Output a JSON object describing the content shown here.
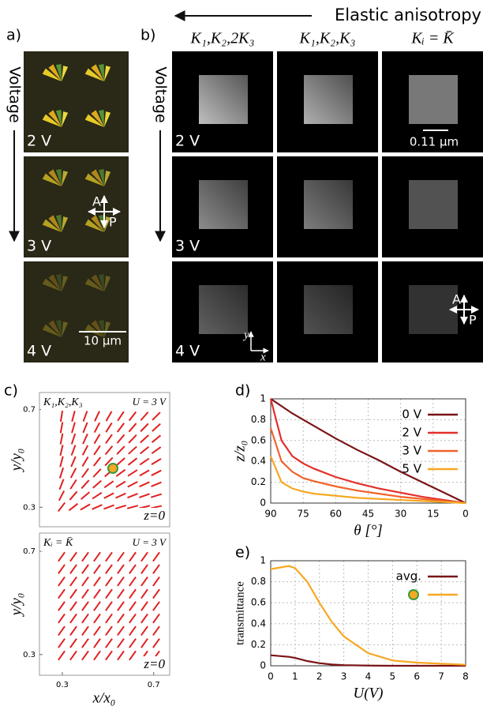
{
  "header": {
    "arrow_label": "Elastic anisotropy"
  },
  "panel_a": {
    "label": "a)",
    "axis_label": "Voltage",
    "rows": [
      "2 V",
      "3 V",
      "4 V"
    ],
    "polarizer": [
      "A",
      "P"
    ],
    "scale_bar": "10 μm"
  },
  "panel_b": {
    "label": "b)",
    "axis_label": "Voltage",
    "columns": [
      "K₁,K₂,2K₃",
      "K₁,K₂,K₃",
      "Kᵢ = K̄"
    ],
    "rows": [
      "2 V",
      "3 V",
      "4 V"
    ],
    "scale_bar": "0.11 μm",
    "axes": [
      "y",
      "x"
    ],
    "polarizer": [
      "A",
      "P"
    ]
  },
  "panel_c": {
    "label": "c)",
    "plots": [
      {
        "title": "K₁,K₂,K₃",
        "voltage": "U = 3 V",
        "plane": "z=0"
      },
      {
        "title": "Kᵢ = K̄",
        "voltage": "U = 3 V",
        "plane": "z=0"
      }
    ],
    "ylabel": "y/y₀",
    "xlabel": "x/x₀",
    "xlim": [
      0.2,
      0.77
    ],
    "ylim": [
      0.22,
      0.77
    ],
    "xticks": [
      0.3,
      0.7
    ],
    "yticks": [
      0.3,
      0.7
    ]
  },
  "chart_data": [
    {
      "type": "line",
      "label": "d)",
      "xlabel": "θ [°]",
      "ylabel": "z/z₀",
      "x": [
        90,
        85,
        80,
        75,
        70,
        60,
        50,
        40,
        30,
        20,
        10,
        0
      ],
      "xlim": [
        90,
        0
      ],
      "xticks": [
        90,
        75,
        60,
        45,
        30,
        15,
        0
      ],
      "ylim": [
        0,
        1
      ],
      "yticks": [
        0,
        0.2,
        0.4,
        0.6,
        0.8,
        1
      ],
      "grid": true,
      "series": [
        {
          "name": "0 V",
          "color": "#7a1416",
          "values": [
            1,
            0.93,
            0.86,
            0.8,
            0.74,
            0.62,
            0.51,
            0.41,
            0.3,
            0.2,
            0.1,
            0
          ]
        },
        {
          "name": "2 V",
          "color": "#e2302a",
          "values": [
            1,
            0.6,
            0.45,
            0.38,
            0.33,
            0.25,
            0.19,
            0.14,
            0.1,
            0.06,
            0.03,
            0
          ]
        },
        {
          "name": "3 V",
          "color": "#f0622a",
          "values": [
            0.72,
            0.4,
            0.3,
            0.24,
            0.21,
            0.16,
            0.12,
            0.09,
            0.06,
            0.04,
            0.02,
            0
          ]
        },
        {
          "name": "5 V",
          "color": "#f7a823",
          "values": [
            0.45,
            0.2,
            0.14,
            0.11,
            0.09,
            0.07,
            0.05,
            0.04,
            0.03,
            0.02,
            0.01,
            0
          ]
        }
      ]
    },
    {
      "type": "line",
      "label": "e)",
      "xlabel": "U(V)",
      "ylabel": "transmittance",
      "x": [
        0,
        0.75,
        1,
        1.5,
        2,
        2.5,
        3,
        4,
        5,
        6,
        7,
        8
      ],
      "xlim": [
        0,
        8
      ],
      "xticks": [
        0,
        1,
        2,
        3,
        4,
        5,
        6,
        7,
        8
      ],
      "ylim": [
        0,
        1
      ],
      "yticks": [
        0,
        0.2,
        0.4,
        0.6,
        0.8,
        1
      ],
      "grid": true,
      "series": [
        {
          "name": "avg.",
          "color": "#7a1416",
          "values": [
            0.1,
            0.085,
            0.075,
            0.045,
            0.025,
            0.012,
            0.006,
            0.002,
            0,
            0,
            0,
            0
          ]
        },
        {
          "color": "#f7a823",
          "values": [
            0.92,
            0.95,
            0.93,
            0.8,
            0.6,
            0.42,
            0.28,
            0.12,
            0.05,
            0.03,
            0.02,
            0.01
          ]
        }
      ]
    }
  ]
}
